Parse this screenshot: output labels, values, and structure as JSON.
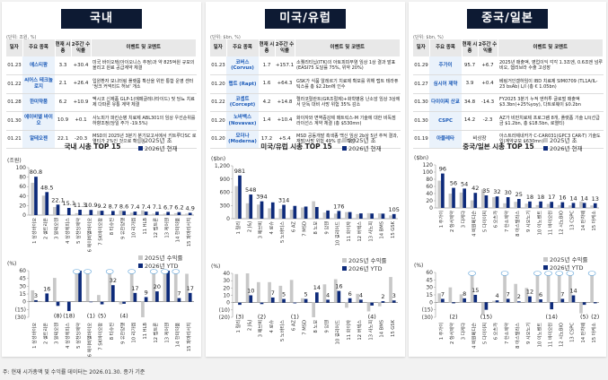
{
  "footnote": "주: 현재 시가총액 및 수익률 데이터는 2026.01.30. 종가 기준",
  "panels": [
    {
      "title": "국내",
      "unit": "(단위: 조원, %)",
      "headers": [
        "일자",
        "주요 종목",
        "현재 시총",
        "2주간 수익률",
        "이벤트 및 코멘트"
      ],
      "rows": [
        {
          "date": "01.23",
          "name": "에스티팜",
          "mcap": "3.3",
          "ret": "+30.4",
          "event": "미국 바이오텍(아이오니스 추정)과 약 825억원 규모의 올리고 원료 공급계약 체결"
        },
        {
          "date": "01.22",
          "name": "씨어스 테크놀로지",
          "mcap": "2.1",
          "ret": "+26.4",
          "event": "입원환자 모니터링 플랫폼 확산을 위한 통합 운영 센터 '씽크 커넥티드 허브' 개소"
        },
        {
          "date": "01.28",
          "name": "한미약품",
          "mcap": "6.2",
          "ret": "+10.9",
          "event": "멕시코 신제품 GLP-1(에페글레나타이드) 및 당뇨 치료제 다파론 유통 계약 체결"
        },
        {
          "date": "01.30",
          "name": "에이비엘 바이오",
          "mcap": "10.9",
          "ret": "+0.1",
          "event": "사노피가 파킨슨병 치료제 ABL301의 임상 우선순위를 하향조정(당일 주가 -19.5%)"
        },
        {
          "date": "01.21",
          "name": "알테오젠",
          "mcap": "22.1",
          "ret": "-20.3",
          "event": "MSD의 2025년 3분기 분기보고서에서 키트루다SC 로열티가 2%인 것으로 확인됨"
        }
      ]
    },
    {
      "title": "미국/유럽",
      "unit": "(단위: $bn, %)",
      "headers": [
        "일자",
        "주요 종목",
        "현재 시총",
        "2주간 수익률",
        "이벤트 및 코멘트"
      ],
      "rows": [
        {
          "date": "01.23",
          "name": "코버스 (Corvus)",
          "mcap": "1.7",
          "ret": "+157.1",
          "event": "소퀠리티닙(ITK)의 아토피피부염 임상 1상 결과 발표(EASI75 도달률 75%, 위약 20%)"
        },
        {
          "date": "01.20",
          "name": "랩트 (Rapt)",
          "mcap": "1.6",
          "ret": "+64.3",
          "event": "GSK가 식품 알레르기 치료제 확보를 위해 랩트 테라퓨틱스를 총 $2.2bn에 인수"
        },
        {
          "date": "01.22",
          "name": "코셉트 (Corcept)",
          "mcap": "4.2",
          "ret": "+14.8",
          "event": "렐라코릴란트(GR조절제)+화학병용 난소암 임상 3상에서 단독 대비 사망 위험 35% 감소"
        },
        {
          "date": "01.20",
          "name": "노바백스 (Novavax)",
          "mcap": "1.4",
          "ret": "+10.4",
          "event": "화이자와 면역증강제 매트릭스-M 기술에 대한 비독점 라이선스 계약 체결 (총 $530mn)"
        },
        {
          "date": "01.20",
          "name": "모더나 (Moderna)",
          "mcap": "17.2",
          "ret": "+5.4",
          "event": "MSD 공동개발 흑색종 백신 임상 2b상 5년 추적 결과, 재발/사망 위험 49% 감소 확인"
        }
      ]
    },
    {
      "title": "중국/일본",
      "unit": "(단위: $bn, %)",
      "headers": [
        "일자",
        "주요 종목",
        "현재 시총",
        "2주간 수익률",
        "이벤트 및 코멘트"
      ],
      "rows": [
        {
          "date": "01.29",
          "name": "주가이",
          "mcap": "95.7",
          "ret": "+6.7",
          "event": "2025년 매출액, 영업이익 각각 1.3조엔, 0.6조엔 넘루비오, 헴리브라 수출 고성장"
        },
        {
          "date": "01.27",
          "name": "심시어 제약",
          "mcap": "3.9",
          "ret": "+0.4",
          "event": "베링거인겔하임이 IBD 치료제 SIM0709 (TL1A/IL-23 bsAb) L/I (총 € 1.05bn)"
        },
        {
          "date": "01.30",
          "name": "다이이찌 산쿄",
          "mcap": "34.8",
          "ret": "-14.3",
          "event": "FY2025 3분기 누적 엔허투 글로벌 매출액 $3.3bn(+25%yoy), 다트로웨이 $0.2bn"
        },
        {
          "date": "01.30",
          "name": "CSPC",
          "mcap": "14.2",
          "ret": "-2.3",
          "event": "AZ가 비만치료제 프로그램 8개, 플랫폼 기술 L/I(선급금 $1.2bn, 총 $18.5bn, 로열티)"
        },
        {
          "date": "01.19",
          "name": "아뮬레타",
          "mcap": "비상장",
          "ret": "",
          "event": "아스트라제네카가 C-CAR031(GPC3 CAR-T) 기술도입(계약규모 $630mn)"
        }
      ]
    }
  ],
  "chart_data": [
    {
      "type": "bar",
      "title": "국내 시총 TOP 15",
      "ylabel": "(조원)",
      "ylim": [
        0,
        100
      ],
      "yticks": [
        "0",
        "20",
        "40",
        "60",
        "80",
        "100"
      ],
      "legend": "top-right",
      "categories": [
        "1 삼성바이오",
        "2 셀트리온",
        "3 알테오젠",
        "4 삼성에피스",
        "5 삼천당제약",
        "6 에이비엘바이오",
        "7 SK바이오팜",
        "8 티슈진",
        "9 유한양행",
        "10 리가켐",
        "11 HLB",
        "12 펩트론",
        "13 케어젠",
        "14 한미약품",
        "15 파마리서치"
      ],
      "series": [
        {
          "name": "2025년 초",
          "color": "#c8c8c8",
          "values": [
            68,
            41,
            17,
            0,
            4,
            2,
            9,
            2,
            10,
            5,
            10,
            3,
            3,
            4,
            3
          ]
        },
        {
          "name": "2026년 현재",
          "color": "#0d2a7a",
          "values": [
            80.8,
            48.5,
            22.1,
            15.1,
            11.3,
            10.9,
            9.2,
            8.7,
            8.6,
            7.4,
            7.4,
            7.1,
            6.7,
            6.2,
            4.9
          ]
        }
      ],
      "labels": [
        "80.8",
        "48.5",
        "22.1",
        "15.1",
        "11.3",
        "10.9",
        "9.2",
        "8.7",
        "8.6",
        "7.4",
        "7.4",
        "7.1",
        "6.7",
        "6.2",
        "4.9"
      ]
    },
    {
      "type": "bar",
      "title": "",
      "ylabel": "(%)",
      "ylim": [
        -30,
        60
      ],
      "yticks": [
        "(30)",
        "(15)",
        "0",
        "15",
        "30",
        "45",
        "60"
      ],
      "legend": "top-right",
      "categories": [
        "1 삼성바이오",
        "2 셀트리온",
        "3 알테오젠",
        "4 삼성에피스",
        "5 삼천당제약",
        "6 에이비엘바이오",
        "7 SK바이오팜",
        "8 티슈진",
        "9 유한양행",
        "10 리가켐",
        "11 HLB",
        "12 펩트론",
        "13 케어젠",
        "14 한미약품",
        "15 파마리서치"
      ],
      "series": [
        {
          "name": "2025년 수익률",
          "color": "#c8c8c8",
          "values": [
            22,
            0,
            46,
            0,
            57,
            60,
            13,
            60,
            -5,
            60,
            -30,
            60,
            60,
            60,
            54
          ]
        },
        {
          "name": "2026년 YTD",
          "color": "#0d2a7a",
          "values": [
            3,
            16,
            -8,
            -18,
            60,
            -1,
            -5,
            32,
            -4,
            17,
            9,
            20,
            60,
            7,
            17
          ]
        }
      ],
      "labels": [
        "3",
        "16",
        "(8)",
        "(18)",
        "",
        "(1)",
        "(5)",
        "32",
        "(4)",
        "17",
        "9",
        "20",
        "",
        "7",
        "17"
      ],
      "breaks": [
        4,
        5,
        7,
        9,
        11,
        12,
        13
      ]
    },
    {
      "type": "bar",
      "title": "미국/유럽 시총 TOP 15",
      "ylabel": "($bn)",
      "ylim": [
        0,
        1200
      ],
      "yticks": [
        "0",
        "300",
        "600",
        "900",
        "1,200"
      ],
      "legend": "top-right",
      "categories": [
        "1 릴리",
        "2 J&J",
        "3 애브비",
        "4 로슈",
        "5 노바티스",
        "6 AZ",
        "7 MSD",
        "8 노보",
        "9 암젠",
        "10 길리어드",
        "11 화이자",
        "12 버텍스",
        "13 사노피",
        "14 BMS",
        "15 GSK"
      ],
      "series": [
        {
          "name": "2025년 초",
          "color": "#c8c8c8",
          "values": [
            740,
            350,
            320,
            235,
            225,
            205,
            255,
            395,
            140,
            115,
            150,
            105,
            125,
            120,
            75
          ]
        },
        {
          "name": "2026년 현재",
          "color": "#0d2a7a",
          "values": [
            981,
            548,
            394,
            370,
            314,
            290,
            275,
            265,
            185,
            176,
            150,
            120,
            118,
            115,
            105
          ]
        }
      ],
      "labels": [
        "981",
        "548",
        "394",
        "",
        "314",
        "",
        "",
        "",
        "",
        "176",
        "",
        "",
        "",
        "",
        "105"
      ]
    },
    {
      "type": "bar",
      "title": "",
      "ylabel": "(%)",
      "ylim": [
        -20,
        40
      ],
      "yticks": [
        "(20)",
        "(10)",
        "0",
        "10",
        "20",
        "30",
        "40"
      ],
      "legend": "top-right",
      "categories": [
        "1 릴리",
        "2 J&J",
        "3 애브비",
        "4 로슈",
        "5 노바티스",
        "6 AZ",
        "7 MSD",
        "8 노보",
        "9 암젠",
        "10 길리어드",
        "11 화이자",
        "12 버텍스",
        "13 사노피",
        "14 BMS",
        "15 GSK"
      ],
      "series": [
        {
          "name": "2025년 수익률",
          "color": "#c8c8c8",
          "values": [
            39,
            40,
            28,
            28,
            23,
            31,
            6,
            -21,
            25,
            32,
            -7,
            12,
            -12,
            -5,
            35
          ]
        },
        {
          "name": "2026년 YTD",
          "color": "#0d2a7a",
          "values": [
            -3,
            10,
            -2,
            7,
            5,
            -1,
            5,
            14,
            4,
            16,
            6,
            4,
            -4,
            2,
            3
          ]
        }
      ],
      "labels": [
        "(3)",
        "10",
        "(2)",
        "7",
        "5",
        "(1)",
        "5",
        "14",
        "4",
        "16",
        "6",
        "4",
        "(4)",
        "2",
        "3"
      ]
    },
    {
      "type": "bar",
      "title": "중국/일본 시총 TOP 15",
      "ylabel": "($bn)",
      "ylim": [
        0,
        120
      ],
      "yticks": [
        "0",
        "20",
        "40",
        "60",
        "80",
        "100",
        "120"
      ],
      "legend": "top-right",
      "categories": [
        "1 주가이",
        "2 항서제약",
        "3 다케다",
        "4 비원메디슨",
        "5 다이이찌",
        "6 오츠카",
        "7 한소제약",
        "8 아스텔라스",
        "9 시오노기",
        "10 이노벤트",
        "11 바이오린",
        "12 시노BIO",
        "13 CSPC",
        "14 판차웨",
        "15 아케소"
      ],
      "series": [
        {
          "name": "2025년 초",
          "color": "#c8c8c8",
          "values": [
            76,
            40,
            43,
            21,
            52,
            30,
            13,
            17,
            12,
            8,
            11,
            8,
            7,
            18,
            7
          ]
        },
        {
          "name": "2026년 현재",
          "color": "#0d2a7a",
          "values": [
            96,
            56,
            54,
            42,
            35,
            32,
            30,
            25,
            18,
            18,
            17,
            16,
            14,
            14,
            13
          ]
        }
      ],
      "labels": [
        "96",
        "56",
        "54",
        "42",
        "35",
        "32",
        "30",
        "25",
        "18",
        "18",
        "17",
        "16",
        "14",
        "14",
        "13"
      ]
    },
    {
      "type": "bar",
      "title": "",
      "ylabel": "(%)",
      "ylim": [
        -30,
        60
      ],
      "yticks": [
        "(30)",
        "(15)",
        "0",
        "15",
        "30",
        "45",
        "60"
      ],
      "legend": "top-right",
      "categories": [
        "1 주가이",
        "2 항서제약",
        "3 다케다",
        "4 비원메디슨",
        "5 다이이찌",
        "6 오츠카",
        "7 한소제약",
        "8 아스텔라스",
        "9 시오노기",
        "10 이노벤트",
        "11 바이오린",
        "12 시노BIO",
        "13 CSPC",
        "14 판차웨",
        "15 아케소"
      ],
      "series": [
        {
          "name": "2025년 수익률",
          "color": "#c8c8c8",
          "values": [
            18,
            30,
            16,
            60,
            -25,
            3,
            60,
            37,
            29,
            60,
            60,
            60,
            60,
            -22,
            60
          ]
        },
        {
          "name": "2026년 YTD",
          "color": "#0d2a7a",
          "values": [
            7,
            -2,
            8,
            15,
            -15,
            4,
            7,
            2,
            12,
            6,
            -14,
            7,
            14,
            -5,
            -2
          ]
        }
      ],
      "labels": [
        "7",
        "(2)",
        "8",
        "15",
        "(15)",
        "4",
        "7",
        "2",
        "12",
        "6",
        "(14)",
        "7",
        "14",
        "(5)",
        "(2)"
      ],
      "breaks": [
        3,
        6,
        9,
        10,
        11,
        12,
        14
      ]
    }
  ]
}
